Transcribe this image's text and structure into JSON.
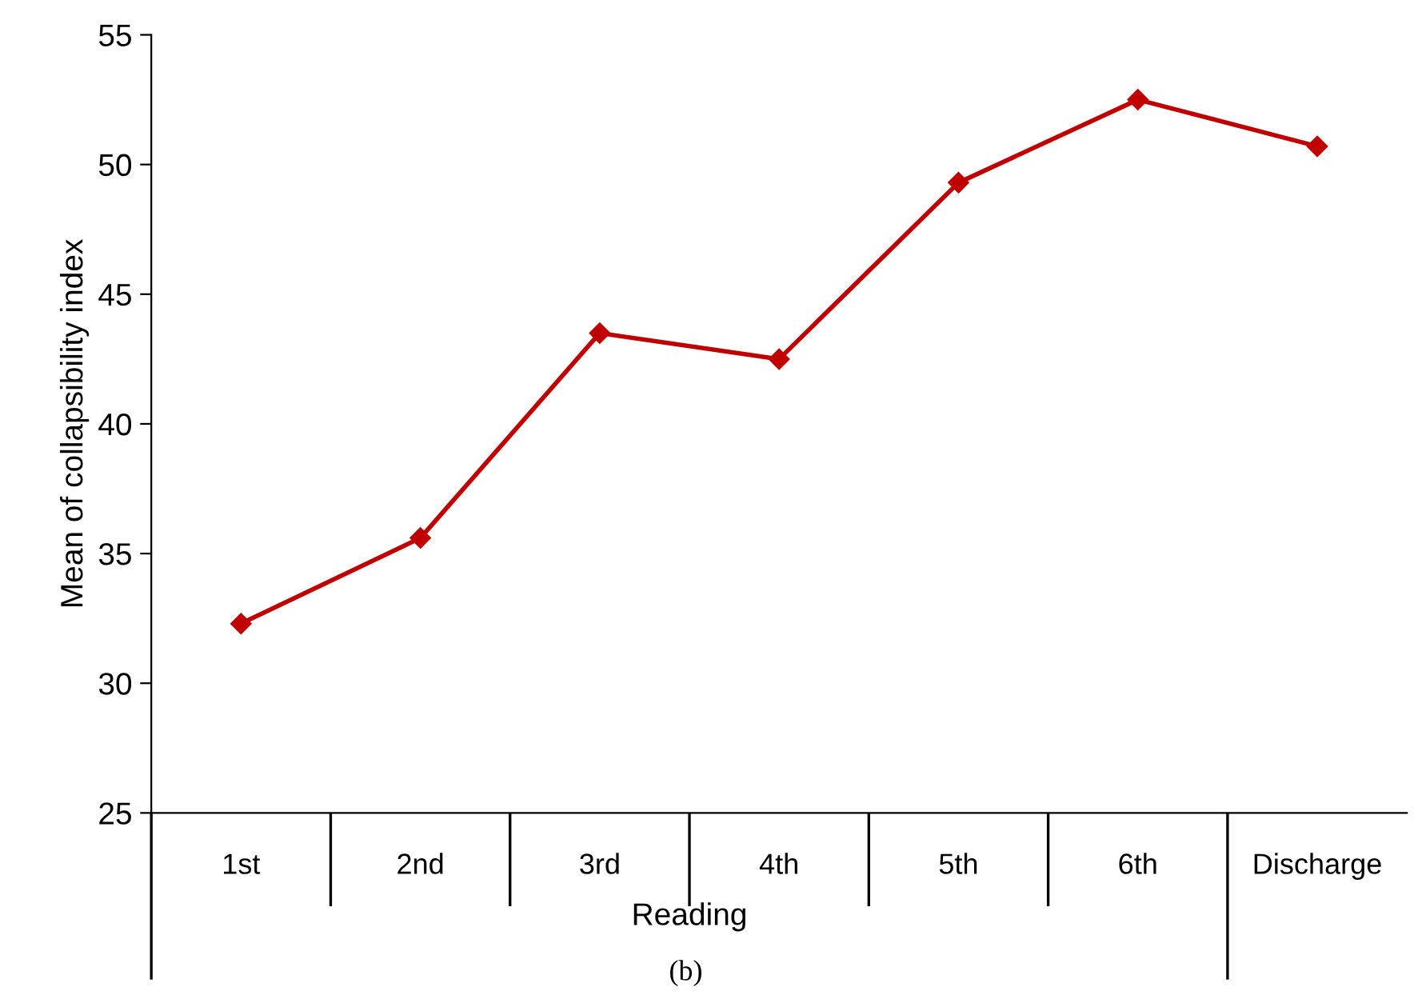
{
  "chart_data": {
    "type": "line",
    "ylabel": "Mean of collapsibility index",
    "xlabel": "Reading",
    "categories": [
      "1st",
      "2nd",
      "3rd",
      "4th",
      "5th",
      "6th",
      "Discharge"
    ],
    "series": [
      {
        "color": "#c00000",
        "values": [
          32.3,
          35.6,
          43.5,
          42.5,
          49.3,
          52.5,
          50.7
        ]
      }
    ],
    "ylim": [
      25,
      55
    ],
    "yticks": [
      25,
      30,
      35,
      40,
      45,
      50,
      55
    ],
    "grid": false,
    "marker": "diamond",
    "line_style": "solid",
    "annotations": [
      "(b)"
    ]
  }
}
